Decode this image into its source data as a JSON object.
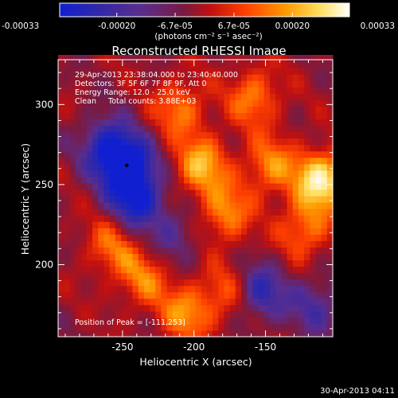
{
  "chart_data": {
    "type": "heatmap",
    "title": "Reconstructed RHESSI Image",
    "xlabel": "Heliocentric X (arcsec)",
    "ylabel": "Heliocentric Y (arcsec)",
    "xlim": [
      -295,
      -103
    ],
    "ylim": [
      155,
      328
    ],
    "xticks": [
      -250,
      -200,
      -150
    ],
    "xtick_labels": [
      "-250",
      "-200",
      "-150"
    ],
    "yticks": [
      200,
      250,
      300
    ],
    "ytick_labels": [
      "200",
      "250",
      "300"
    ],
    "colorbar": {
      "range": [
        -0.00033,
        0.00033
      ],
      "ticks": [
        -0.00033,
        -0.0002,
        -6.7e-05,
        6.7e-05,
        0.0002,
        0.00033
      ],
      "tick_labels": [
        "-0.00033",
        "-0.00020",
        "-6.7e-05",
        "6.7e-05",
        "0.00020",
        "0.00033"
      ],
      "units_label": "(photons cm⁻² s⁻¹ asec⁻²)",
      "colors": [
        "#1020d0",
        "#3028a8",
        "#5a2d8e",
        "#7a1a40",
        "#c01010",
        "#ff4000",
        "#ff9a00",
        "#ffe060",
        "#ffffff"
      ]
    },
    "annotations": [
      "29-Apr-2013 23:38:04.000 to 23:40:40.000",
      "Detectors: 3F 5F 6F 7F 8F 9F, Att 0",
      "Energy Range: 12.0 - 25.0 keV",
      "Clean     Total counts: 3.88E+03"
    ],
    "peak_label": "Position of Peak = [-111,253]",
    "peak": [
      -111,
      253
    ],
    "bright_sources": [
      {
        "x": -111,
        "y": 253,
        "value": 0.00033
      },
      {
        "x": -195,
        "y": 262,
        "value": 0.00024
      },
      {
        "x": -178,
        "y": 232,
        "value": 0.0002
      },
      {
        "x": -210,
        "y": 298,
        "value": 0.00018
      },
      {
        "x": -158,
        "y": 305,
        "value": 0.00019
      },
      {
        "x": -258,
        "y": 212,
        "value": 0.00016
      },
      {
        "x": -235,
        "y": 192,
        "value": 0.00017
      },
      {
        "x": -205,
        "y": 170,
        "value": 0.0002
      },
      {
        "x": -147,
        "y": 262,
        "value": 0.00019
      },
      {
        "x": -123,
        "y": 222,
        "value": 0.00018
      },
      {
        "x": -176,
        "y": 183,
        "value": 0.00015
      }
    ],
    "dark_sources": [
      {
        "x": -247,
        "y": 262,
        "value": -0.00033
      },
      {
        "x": -240,
        "y": 240,
        "value": -0.00025
      },
      {
        "x": -262,
        "y": 275,
        "value": -0.0002
      },
      {
        "x": -155,
        "y": 183,
        "value": -0.00022
      },
      {
        "x": -115,
        "y": 175,
        "value": -0.00015
      },
      {
        "x": -213,
        "y": 218,
        "value": -0.00012
      }
    ]
  },
  "timestamp": "30-Apr-2013 04:11"
}
